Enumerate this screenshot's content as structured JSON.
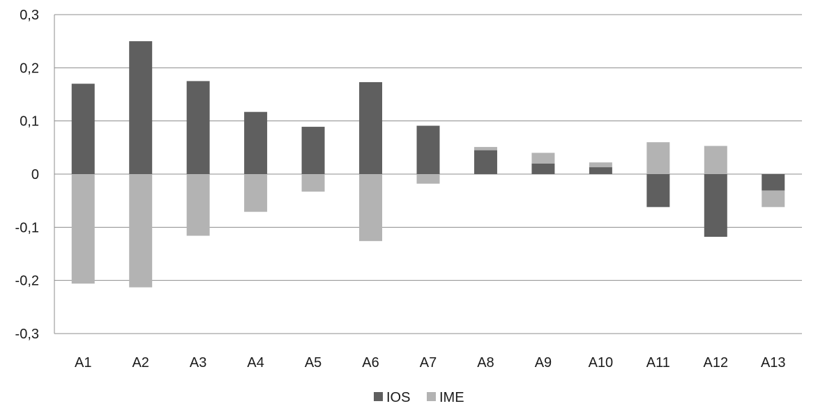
{
  "chart_data": {
    "type": "bar",
    "stacked": true,
    "categories": [
      "A1",
      "A2",
      "A3",
      "A4",
      "A5",
      "A6",
      "A7",
      "A8",
      "A9",
      "A10",
      "A11",
      "A12",
      "A13"
    ],
    "series": [
      {
        "name": "IOS",
        "color": "#5f5f5f",
        "values": [
          0.17,
          0.25,
          0.175,
          0.117,
          0.089,
          0.173,
          0.091,
          0.045,
          0.02,
          0.013,
          -0.062,
          -0.118,
          -0.031
        ]
      },
      {
        "name": "IME",
        "color": "#b3b3b3",
        "values": [
          -0.206,
          -0.213,
          -0.116,
          -0.071,
          -0.033,
          -0.126,
          -0.018,
          0.006,
          0.02,
          0.009,
          0.06,
          0.053,
          -0.031
        ]
      }
    ],
    "ylim": [
      -0.3,
      0.3
    ],
    "yticks": [
      0.3,
      0.2,
      0.1,
      0,
      -0.1,
      -0.2,
      -0.3
    ],
    "ytick_labels": [
      "0,3",
      "0,2",
      "0,1",
      "0",
      "-0,1",
      "-0,2",
      "-0,3"
    ],
    "grid": true,
    "legend_position": "bottom",
    "title": "",
    "xlabel": "",
    "ylabel": ""
  }
}
